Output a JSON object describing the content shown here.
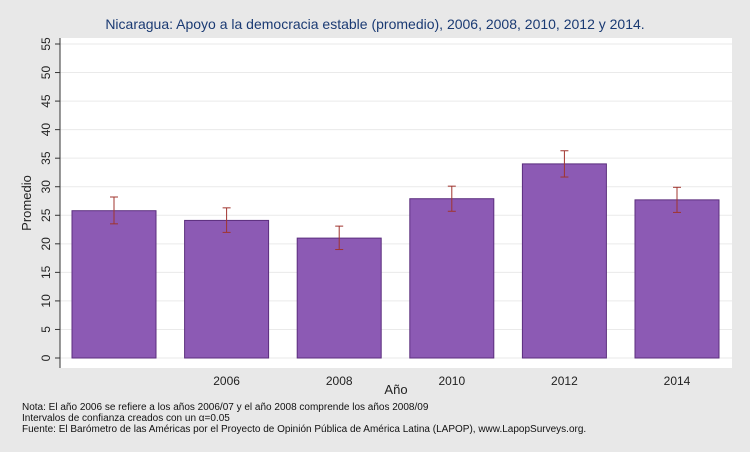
{
  "chart_data": {
    "type": "bar",
    "title": "Nicaragua: Apoyo a la democracia estable (promedio), 2006, 2008, 2010, 2012 y 2014.",
    "xlabel": "Año",
    "ylabel": "Promedio",
    "ylim": [
      0,
      55
    ],
    "yticks": [
      0,
      5,
      10,
      15,
      20,
      25,
      30,
      35,
      40,
      45,
      50,
      55
    ],
    "categories": [
      "",
      "2006",
      "2008",
      "2010",
      "2012",
      "2014"
    ],
    "values": [
      25.8,
      24.1,
      21.0,
      27.9,
      34.0,
      27.7
    ],
    "ci_low": [
      23.5,
      22.0,
      19.0,
      25.7,
      31.7,
      25.5
    ],
    "ci_high": [
      28.2,
      26.3,
      23.1,
      30.1,
      36.3,
      29.9
    ],
    "bar_color": "#8c5ab4",
    "bar_border": "#5b2e7e",
    "errorbar_color": "#a0342e",
    "plot_background": "#ffffff",
    "page_background": "#e8e8e8",
    "grid": true
  },
  "notes": [
    "Nota: El año 2006 se refiere a los años 2006/07 y el año 2008 comprende los años 2008/09",
    "Intervalos de confianza creados con un α=0.05",
    "Fuente: El Barómetro de las Américas por el Proyecto de Opinión Pública de América Latina (LAPOP), www.LapopSurveys.org."
  ]
}
